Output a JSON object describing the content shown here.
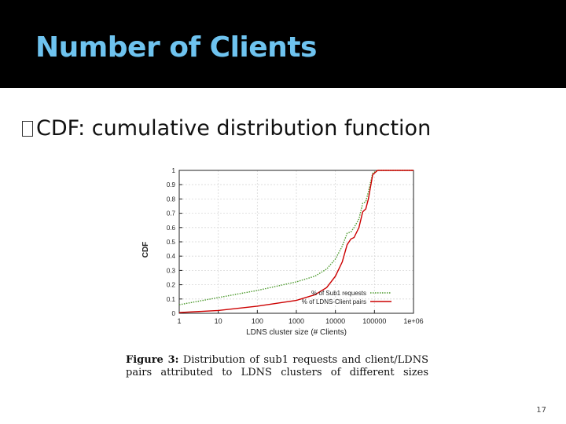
{
  "slide": {
    "title": "Number of Clients",
    "bullet": "CDF: cumulative distribution function",
    "page_number": "17"
  },
  "caption": {
    "label": "Figure 3:",
    "text": "Distribution of sub1 requests and client/LDNS pairs attributed to LDNS clusters of different sizes"
  },
  "colors": {
    "title": "#6ec3ef",
    "title_bar": "#000000",
    "series_requests": "#4e9b2f",
    "series_pairs": "#cc0000"
  },
  "chart_data": {
    "type": "line",
    "xscale": "log",
    "xlim": [
      1,
      1000000
    ],
    "ylim": [
      0,
      1
    ],
    "xlabel": "LDNS cluster size (# Clients)",
    "ylabel": "CDF",
    "xticks": [
      1,
      10,
      100,
      1000,
      10000,
      100000,
      1000000
    ],
    "xtick_labels": [
      "1",
      "10",
      "100",
      "1000",
      "10000",
      "100000",
      "1e+06"
    ],
    "yticks": [
      0,
      0.1,
      0.2,
      0.3,
      0.4,
      0.5,
      0.6,
      0.7,
      0.8,
      0.9,
      1
    ],
    "ytick_labels": [
      "0",
      "0.1",
      "0.2",
      "0.3",
      "0.4",
      "0.5",
      "0.6",
      "0.7",
      "0.8",
      "0.9",
      "1"
    ],
    "grid": true,
    "legend_position": "bottom-right",
    "series": [
      {
        "name": "% of Sub1 requests",
        "style": "dotted",
        "color": "#4e9b2f",
        "x": [
          1,
          10,
          100,
          1000,
          3000,
          6000,
          10000,
          15000,
          20000,
          25000,
          30000,
          40000,
          50000,
          60000,
          70000,
          90000,
          120000,
          200000,
          1000000
        ],
        "y": [
          0.06,
          0.11,
          0.16,
          0.22,
          0.26,
          0.31,
          0.38,
          0.47,
          0.56,
          0.57,
          0.6,
          0.66,
          0.77,
          0.78,
          0.85,
          0.98,
          1.0,
          1.0,
          1.0
        ]
      },
      {
        "name": "% of LDNS-Client pairs",
        "style": "solid",
        "color": "#cc0000",
        "x": [
          1,
          10,
          100,
          1000,
          3000,
          6000,
          10000,
          15000,
          20000,
          25000,
          30000,
          40000,
          50000,
          60000,
          70000,
          90000,
          120000,
          200000,
          1000000
        ],
        "y": [
          0.005,
          0.02,
          0.05,
          0.09,
          0.13,
          0.18,
          0.26,
          0.36,
          0.48,
          0.52,
          0.53,
          0.6,
          0.71,
          0.73,
          0.8,
          0.97,
          1.0,
          1.0,
          1.0
        ]
      }
    ]
  }
}
